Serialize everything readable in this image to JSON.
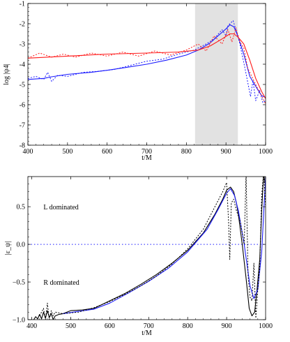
{
  "chart_data": [
    {
      "type": "line",
      "xlabel": "t/M",
      "ylabel": "log |ψ4|",
      "xlim": [
        400,
        1000
      ],
      "ylim": [
        -8,
        -1
      ],
      "xticks": [
        400,
        500,
        600,
        700,
        800,
        900,
        1000
      ],
      "yticks": [
        -8,
        -7,
        -6,
        -5,
        -4,
        -3,
        -2,
        -1
      ],
      "highlight_band": [
        822,
        930
      ],
      "colors": {
        "blue": "#1a1aff",
        "red": "#ff1a1a",
        "band": "#e2e2e2"
      },
      "series": [
        {
          "style": "solid",
          "color": "blue",
          "x": [
            400,
            440,
            460,
            500,
            560,
            600,
            650,
            700,
            750,
            800,
            830,
            860,
            880,
            900,
            910,
            920,
            930,
            945,
            960,
            980,
            990,
            1000
          ],
          "y": [
            -4.75,
            -4.7,
            -4.62,
            -4.5,
            -4.4,
            -4.3,
            -4.15,
            -4.0,
            -3.8,
            -3.55,
            -3.3,
            -2.95,
            -2.6,
            -2.25,
            -2.05,
            -2.15,
            -2.6,
            -3.5,
            -4.6,
            -5.25,
            -5.55,
            -5.65
          ]
        },
        {
          "style": "dotted",
          "color": "blue",
          "x": [
            400,
            420,
            440,
            450,
            460,
            475,
            500,
            540,
            580,
            620,
            660,
            700,
            740,
            780,
            820,
            850,
            870,
            890,
            900,
            905,
            910,
            918,
            925,
            935,
            948,
            955,
            962,
            968,
            975,
            985,
            993,
            1000
          ],
          "y": [
            -4.7,
            -4.6,
            -4.75,
            -4.4,
            -4.85,
            -4.55,
            -4.6,
            -4.4,
            -4.35,
            -4.25,
            -4.05,
            -3.85,
            -3.75,
            -3.5,
            -3.3,
            -3.0,
            -2.75,
            -2.3,
            -2.6,
            -2.1,
            -2.0,
            -1.85,
            -2.3,
            -3.0,
            -4.2,
            -4.9,
            -5.6,
            -4.8,
            -5.8,
            -5.3,
            -5.9,
            -5.8
          ]
        },
        {
          "style": "solid",
          "color": "red",
          "x": [
            400,
            500,
            600,
            700,
            780,
            830,
            860,
            890,
            910,
            920,
            930,
            945,
            960,
            975,
            990,
            1000
          ],
          "y": [
            -3.7,
            -3.6,
            -3.5,
            -3.45,
            -3.4,
            -3.3,
            -3.1,
            -2.75,
            -2.5,
            -2.5,
            -2.65,
            -3.0,
            -3.8,
            -4.7,
            -5.35,
            -5.7
          ]
        },
        {
          "style": "dotted",
          "color": "red",
          "x": [
            400,
            430,
            460,
            490,
            520,
            560,
            600,
            640,
            680,
            720,
            760,
            800,
            830,
            850,
            870,
            890,
            905,
            915,
            925,
            935,
            945,
            955,
            965,
            980,
            1000
          ],
          "y": [
            -3.7,
            -3.45,
            -3.65,
            -3.5,
            -3.65,
            -3.45,
            -3.6,
            -3.4,
            -3.6,
            -3.35,
            -3.55,
            -3.3,
            -3.0,
            -3.35,
            -2.6,
            -3.0,
            -2.3,
            -2.9,
            -2.2,
            -2.9,
            -3.2,
            -4.2,
            -4.6,
            -5.2,
            -5.95
          ]
        }
      ]
    },
    {
      "type": "line",
      "xlabel": "t/M",
      "ylabel": "|ε_ψ|",
      "xlim": [
        390,
        1000
      ],
      "ylim": [
        -1.0,
        0.9
      ],
      "xticks": [
        400,
        500,
        600,
        700,
        800,
        900,
        1000
      ],
      "yticks": [
        -1.0,
        -0.5,
        0.0,
        0.5
      ],
      "ytick_labels": [
        "−1.0",
        "−0.5",
        "0.0",
        "0.5"
      ],
      "annotations": [
        {
          "text": "L dominated",
          "x": 430,
          "y": 0.5
        },
        {
          "text": "R dominated",
          "x": 430,
          "y": -0.5
        }
      ],
      "reference_line": {
        "y": 0.0,
        "style": "dotted",
        "color": "blue"
      },
      "colors": {
        "black": "#000000",
        "blue": "#1a1aff"
      },
      "series": [
        {
          "style": "solid",
          "color": "black",
          "x": [
            405,
            410,
            415,
            420,
            425,
            430,
            435,
            440,
            445,
            450,
            455,
            460,
            470,
            480,
            500,
            530,
            560,
            600,
            640,
            680,
            720,
            760,
            800,
            840,
            870,
            890,
            900,
            910,
            918,
            925,
            930,
            940,
            950,
            958,
            965,
            972,
            978,
            985,
            990,
            995,
            1000
          ],
          "y": [
            -1.0,
            -0.96,
            -0.99,
            -0.93,
            -0.99,
            -0.9,
            -0.98,
            -0.88,
            -0.97,
            -0.92,
            -1.0,
            -0.95,
            -0.93,
            -0.92,
            -0.88,
            -0.87,
            -0.85,
            -0.75,
            -0.65,
            -0.53,
            -0.4,
            -0.25,
            -0.08,
            0.15,
            0.4,
            0.6,
            0.72,
            0.76,
            0.7,
            0.55,
            0.4,
            0.0,
            -0.45,
            -0.85,
            -0.95,
            -0.9,
            -0.6,
            -0.2,
            0.45,
            0.95,
            0.75
          ]
        },
        {
          "style": "solid",
          "color": "blue",
          "x": [
            480,
            520,
            560,
            600,
            650,
            700,
            750,
            800,
            850,
            880,
            900,
            910,
            920,
            930,
            945,
            960,
            970,
            980,
            990,
            1000
          ],
          "y": [
            -0.92,
            -0.89,
            -0.86,
            -0.78,
            -0.64,
            -0.49,
            -0.32,
            -0.1,
            0.2,
            0.48,
            0.68,
            0.74,
            0.65,
            0.45,
            0.0,
            -0.55,
            -0.72,
            -0.6,
            -0.1,
            0.9
          ]
        },
        {
          "style": "dotted",
          "color": "black",
          "x": [
            420,
            430,
            435,
            440,
            445,
            450,
            455,
            460,
            480,
            520,
            560,
            600,
            640,
            680,
            720,
            760,
            800,
            840,
            870,
            890,
            900,
            905,
            908,
            912,
            918,
            925,
            935,
            945,
            950,
            955,
            960,
            965,
            970,
            975,
            980,
            985,
            990,
            995,
            1000
          ],
          "y": [
            -0.95,
            -0.85,
            -1.0,
            -0.78,
            -1.0,
            -0.88,
            -0.95,
            -0.9,
            -0.92,
            -0.9,
            -0.84,
            -0.76,
            -0.66,
            -0.55,
            -0.42,
            -0.26,
            -0.06,
            0.2,
            0.5,
            0.7,
            0.82,
            0.3,
            -0.2,
            0.55,
            0.6,
            0.45,
            0.3,
            0.0,
            0.95,
            -0.4,
            -0.7,
            -0.75,
            -0.25,
            -0.98,
            -0.6,
            -0.3,
            0.65,
            0.95,
            0.5
          ]
        }
      ]
    }
  ]
}
